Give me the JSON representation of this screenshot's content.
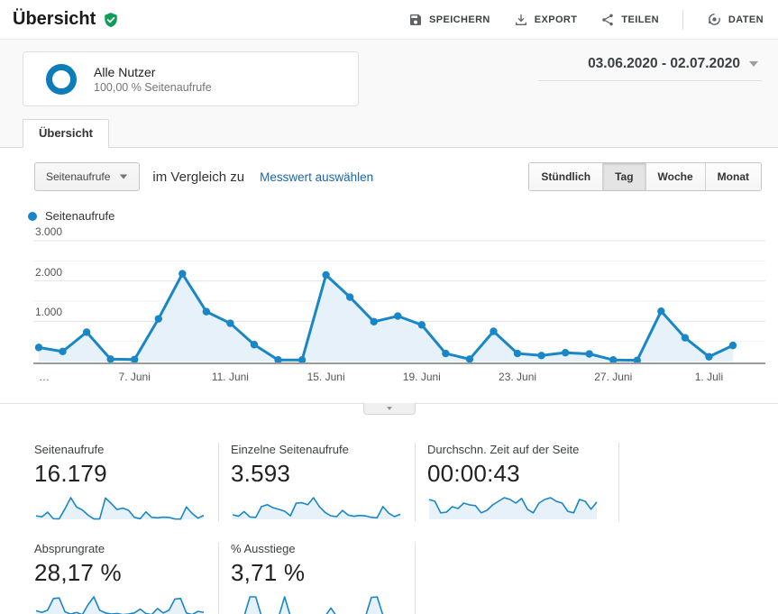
{
  "header": {
    "title": "Übersicht",
    "actions": [
      {
        "label": "SPEICHERN"
      },
      {
        "label": "EXPORT"
      },
      {
        "label": "TEILEN"
      },
      {
        "label": "DATEN"
      }
    ]
  },
  "segment": {
    "name": "Alle Nutzer",
    "detail": "100,00 % Seitenaufrufe"
  },
  "date_range": "03.06.2020 - 02.07.2020",
  "tab": "Übersicht",
  "controls": {
    "metric": "Seitenaufrufe",
    "compare_text": "im Vergleich zu",
    "compare_link": "Messwert auswählen",
    "granularity": [
      "Stündlich",
      "Tag",
      "Woche",
      "Monat"
    ],
    "active_granularity": "Tag"
  },
  "legend": "Seitenaufrufe",
  "chart_data": {
    "type": "line",
    "series": [
      {
        "name": "Seitenaufrufe",
        "values": [
          350,
          250,
          730,
          60,
          50,
          1060,
          2180,
          1240,
          950,
          420,
          40,
          40,
          2150,
          1600,
          990,
          1130,
          910,
          200,
          60,
          750,
          200,
          150,
          220,
          190,
          40,
          30,
          1250,
          590,
          120,
          400
        ]
      }
    ],
    "x_range": "03.06.2020 - 02.07.2020",
    "n_points": 30,
    "x_tick_labels": [
      {
        "idx": 0,
        "text": "…"
      },
      {
        "idx": 4,
        "text": "7. Juni"
      },
      {
        "idx": 8,
        "text": "11. Juni"
      },
      {
        "idx": 12,
        "text": "15. Juni"
      },
      {
        "idx": 16,
        "text": "19. Juni"
      },
      {
        "idx": 20,
        "text": "23. Juni"
      },
      {
        "idx": 24,
        "text": "27. Juni"
      },
      {
        "idx": 28,
        "text": "1. Juli"
      }
    ],
    "yticks": [
      {
        "value": 1000,
        "label": "1.000"
      },
      {
        "value": 2000,
        "label": "2.000"
      },
      {
        "value": 3000,
        "label": "3.000"
      }
    ],
    "ylim": [
      0,
      3000
    ],
    "grid": "horizontal",
    "legend_position": "top-left"
  },
  "scorecards": {
    "row1": [
      {
        "label": "Seitenaufrufe",
        "value": "16.179",
        "spark": [
          350,
          250,
          730,
          60,
          50,
          1060,
          2180,
          1240,
          950,
          420,
          40,
          40,
          2150,
          1600,
          990,
          1130,
          910,
          200,
          60,
          750,
          200,
          150,
          220,
          190,
          40,
          30,
          1250,
          590,
          120,
          400
        ]
      },
      {
        "label": "Einzelne Seitenaufrufe",
        "value": "3.593",
        "spark": [
          120,
          80,
          200,
          60,
          50,
          330,
          380,
          300,
          260,
          210,
          90,
          420,
          430,
          380,
          560,
          330,
          180,
          90,
          70,
          230,
          110,
          80,
          100,
          90,
          50,
          40,
          330,
          160,
          70,
          130
        ]
      },
      {
        "label": "Durchschn. Zeit auf der Seite",
        "value": "00:00:43",
        "spark": [
          55,
          50,
          18,
          20,
          35,
          30,
          45,
          40,
          38,
          18,
          25,
          40,
          50,
          60,
          55,
          45,
          58,
          28,
          18,
          45,
          55,
          60,
          50,
          45,
          22,
          18,
          55,
          50,
          28,
          48
        ]
      }
    ],
    "row2": [
      {
        "label": "Absprungrate",
        "value": "28,17 %",
        "spark": [
          28,
          22,
          30,
          72,
          74,
          24,
          16,
          22,
          14,
          50,
          78,
          30,
          20,
          16,
          18,
          14,
          16,
          20,
          34,
          18,
          14,
          36,
          20,
          30,
          70,
          72,
          20,
          14,
          26,
          22
        ]
      },
      {
        "label": "% Ausstiege",
        "value": "3,71 %",
        "spark": [
          8,
          8,
          8,
          78,
          78,
          8,
          8,
          8,
          8,
          78,
          8,
          8,
          8,
          8,
          8,
          8,
          8,
          38,
          8,
          12,
          8,
          8,
          8,
          8,
          76,
          78,
          12,
          8,
          10,
          8
        ]
      }
    ]
  },
  "colors": {
    "accent": "#1886c7",
    "area_fill": "#e7f1f9",
    "link": "#1767b0",
    "badge_green": "#0f9d58",
    "ring_blue": "#0c7cba",
    "axis_line": "#9b9b9b",
    "grid_major": "#e4e4e4",
    "grid_minor": "#f1f1f1"
  }
}
